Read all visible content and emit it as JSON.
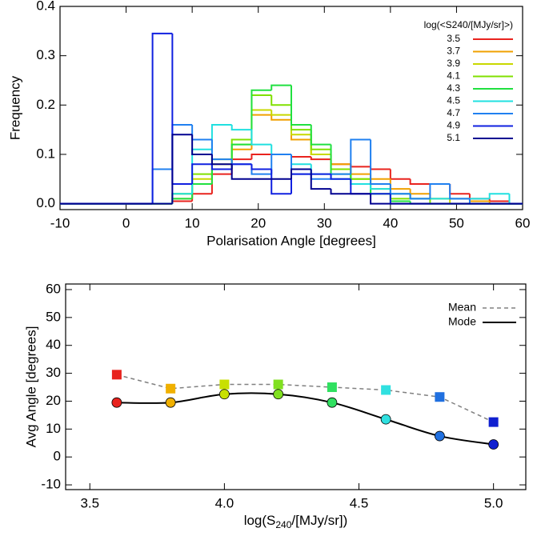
{
  "chart_data": [
    {
      "type": "histogram",
      "x_label": "Polarisation Angle [degrees]",
      "y_label": "Frequency",
      "legend_title": "log(<S240/[MJy/sr]>)",
      "legend": "upper right",
      "bins": [
        4,
        7,
        10,
        13,
        16,
        19,
        22,
        25,
        28,
        31,
        34,
        37,
        40,
        43,
        46,
        49,
        52,
        55,
        58
      ],
      "series": [
        {
          "name": "3.5",
          "color": "#e8231e",
          "values": [
            0,
            0.005,
            0.02,
            0.06,
            0.09,
            0.1,
            0.1,
            0.095,
            0.09,
            0.08,
            0.075,
            0.07,
            0.05,
            0.04,
            0.04,
            0.02,
            0.01,
            0.005
          ]
        },
        {
          "name": "3.7",
          "color": "#f0a000",
          "values": [
            0,
            0.01,
            0.04,
            0.07,
            0.11,
            0.18,
            0.17,
            0.13,
            0.1,
            0.08,
            0.06,
            0.05,
            0.03,
            0.02,
            0.01,
            0.01,
            0.005,
            0
          ]
        },
        {
          "name": "3.9",
          "color": "#c8d800",
          "values": [
            0,
            0.02,
            0.05,
            0.08,
            0.12,
            0.19,
            0.18,
            0.14,
            0.1,
            0.07,
            0.05,
            0.03,
            0.02,
            0.01,
            0.01,
            0,
            0,
            0
          ]
        },
        {
          "name": "4.1",
          "color": "#80e000",
          "values": [
            0,
            0.02,
            0.06,
            0.09,
            0.13,
            0.22,
            0.2,
            0.15,
            0.11,
            0.07,
            0.05,
            0.02,
            0.01,
            0.01,
            0,
            0,
            0,
            0
          ]
        },
        {
          "name": "4.3",
          "color": "#20e040",
          "values": [
            0,
            0.01,
            0.04,
            0.07,
            0.12,
            0.23,
            0.24,
            0.16,
            0.12,
            0.06,
            0.04,
            0.02,
            0.005,
            0,
            0,
            0,
            0,
            0
          ]
        },
        {
          "name": "4.5",
          "color": "#20e0e0",
          "values": [
            0,
            0.02,
            0.11,
            0.16,
            0.15,
            0.12,
            0.1,
            0.08,
            0.06,
            0.05,
            0.04,
            0.03,
            0.02,
            0.01,
            0.01,
            0.01,
            0.01,
            0.02
          ]
        },
        {
          "name": "4.7",
          "color": "#2080f0",
          "values": [
            0.07,
            0.16,
            0.13,
            0.09,
            0.08,
            0.06,
            0.1,
            0.06,
            0.05,
            0.06,
            0.13,
            0.04,
            0.02,
            0.01,
            0.04,
            0.01,
            0,
            0
          ]
        },
        {
          "name": "4.9",
          "color": "#1020e0",
          "values": [
            0.345,
            0.04,
            0.08,
            0.07,
            0.08,
            0.07,
            0.02,
            0.06,
            0.06,
            0.05,
            0.02,
            0.02,
            0,
            0,
            0,
            0,
            0,
            0
          ]
        },
        {
          "name": "5.1",
          "color": "#000090",
          "values": [
            0,
            0.14,
            0.1,
            0.08,
            0.05,
            0.05,
            0.05,
            0.07,
            0.03,
            0.02,
            0.02,
            0,
            0,
            0,
            0,
            0,
            0,
            0
          ]
        }
      ],
      "xlim": [
        -10,
        60
      ],
      "xticks": [
        -10,
        0,
        10,
        20,
        30,
        40,
        50,
        60
      ],
      "ylim": [
        -0.012,
        0.4
      ],
      "yticks": [
        {
          "value": 0,
          "label": "0.0"
        },
        {
          "value": 0.1,
          "label": "0.1"
        },
        {
          "value": 0.2,
          "label": "0.2"
        },
        {
          "value": 0.3,
          "label": "0.3"
        },
        {
          "value": 0.4,
          "label": "0.4"
        }
      ]
    },
    {
      "type": "line",
      "x_label": [
        "log(S",
        "240",
        "/[MJy/sr])"
      ],
      "y_label": "Avg Angle [degrees]",
      "legend": "upper right",
      "x": [
        3.6,
        3.8,
        4.0,
        4.2,
        4.4,
        4.6,
        4.8,
        5.0
      ],
      "marker_colors": [
        "#e8231e",
        "#f0b000",
        "#c8e000",
        "#80e020",
        "#30e060",
        "#30e0e0",
        "#2070e0",
        "#1020d0"
      ],
      "series": [
        {
          "name": "Mean",
          "color": "#808080",
          "dashed": true,
          "marker": "square",
          "values": [
            29.5,
            24.5,
            26,
            26,
            25,
            24,
            21.5,
            12.5
          ]
        },
        {
          "name": "Mode",
          "color": "#000000",
          "dashed": false,
          "marker": "circle",
          "values": [
            19.5,
            19.5,
            22.5,
            22.5,
            19.5,
            13.5,
            7.5,
            4.5
          ]
        }
      ],
      "xlim": [
        3.41,
        5.12
      ],
      "xticks": [
        3.5,
        {
          "value": 4,
          "label": "4.0"
        },
        4.5,
        {
          "value": 5,
          "label": "5.0"
        }
      ],
      "ylim": [
        -11.7,
        62
      ],
      "yticks": [
        -10,
        0,
        10,
        20,
        30,
        40,
        50,
        60
      ]
    }
  ]
}
